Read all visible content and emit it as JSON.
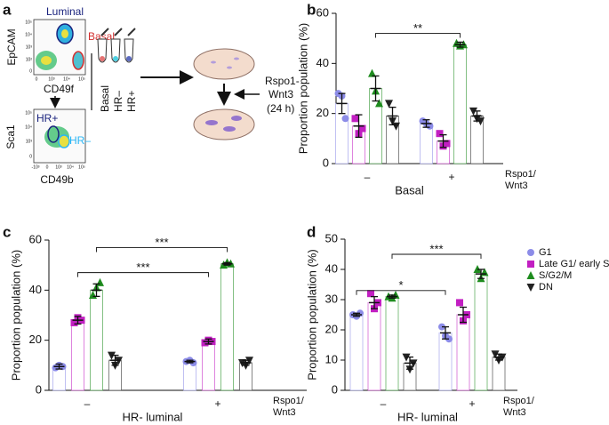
{
  "diagram": {
    "panel": "a",
    "flow1": {
      "gates": [
        "Luminal",
        "Basal"
      ],
      "ylabel": "EpCAM",
      "xlabel": "CD49f",
      "yticks": [
        "10⁵",
        "10⁴",
        "10³",
        "10²",
        "0"
      ],
      "xticks": [
        "0",
        "10³",
        "10⁴",
        "10⁵"
      ]
    },
    "tubes": [
      "Basal",
      "HR–",
      "HR+"
    ],
    "treatment": [
      "Rspo1-",
      "Wnt3",
      "(24 h)"
    ],
    "flow2": {
      "gates": [
        "HR+",
        "HR–"
      ],
      "ylabel": "Sca1",
      "xlabel": "CD49b",
      "yticks": [
        "10⁵",
        "10⁴",
        "10³",
        "0"
      ],
      "xticks": [
        "-10³",
        "0",
        "10³",
        "10⁴",
        "10⁵"
      ]
    }
  },
  "chart_data": [
    {
      "panel": "b",
      "type": "bar",
      "ylabel": "Proportion population (%)",
      "xlabel": "Basal",
      "categories": [
        "–",
        "+"
      ],
      "annotation": [
        "Rspo1/",
        "Wnt3"
      ],
      "ylim": [
        0,
        60
      ],
      "yticks": [
        0,
        20,
        40,
        60
      ],
      "legend": false,
      "series": [
        {
          "color": "#8c8ce8",
          "marker": "circle",
          "values": [
            24,
            16
          ],
          "errors": [
            4,
            1.5
          ],
          "points": [
            [
              28,
              27,
              18
            ],
            [
              17,
              16,
              15
            ]
          ]
        },
        {
          "color": "#c21fc2",
          "marker": "square",
          "values": [
            15,
            9
          ],
          "errors": [
            4.5,
            2.5
          ],
          "points": [
            [
              18,
              12,
              14
            ],
            [
              12,
              7,
              8
            ]
          ]
        },
        {
          "color": "#1e8c1e",
          "marker": "triangle",
          "values": [
            30,
            47.5
          ],
          "errors": [
            5,
            1
          ],
          "points": [
            [
              36,
              29,
              24
            ],
            [
              48,
              47,
              47.5
            ]
          ]
        },
        {
          "color": "#222222",
          "marker": "down-triangle",
          "values": [
            19,
            19
          ],
          "errors": [
            3.5,
            2
          ],
          "points": [
            [
              24,
              17,
              15
            ],
            [
              21,
              18,
              17
            ]
          ]
        }
      ],
      "significance": [
        {
          "label": "**",
          "series": 2,
          "y": 52
        }
      ]
    },
    {
      "panel": "c",
      "type": "bar",
      "ylabel": "Proportion population (%)",
      "xlabel": "HR- luminal",
      "categories": [
        "–",
        "+"
      ],
      "annotation": [
        "Rspo1/",
        "Wnt3"
      ],
      "ylim": [
        0,
        60
      ],
      "yticks": [
        0,
        20,
        40,
        60
      ],
      "legend": false,
      "series": [
        {
          "color": "#8c8ce8",
          "marker": "circle",
          "values": [
            9.5,
            11.5
          ],
          "errors": [
            1,
            0.5
          ],
          "points": [
            [
              9,
              10,
              9.5
            ],
            [
              11.5,
              12,
              11
            ]
          ]
        },
        {
          "color": "#c21fc2",
          "marker": "square",
          "values": [
            28,
            19.5
          ],
          "errors": [
            1.5,
            1
          ],
          "points": [
            [
              27,
              29,
              28
            ],
            [
              19,
              20,
              19.5
            ]
          ]
        },
        {
          "color": "#1e8c1e",
          "marker": "triangle",
          "values": [
            40,
            50.5
          ],
          "errors": [
            2.5,
            0.5
          ],
          "points": [
            [
              38,
              41,
              43
            ],
            [
              50,
              51,
              50.5
            ]
          ]
        },
        {
          "color": "#222222",
          "marker": "down-triangle",
          "values": [
            12,
            11
          ],
          "errors": [
            2,
            1
          ],
          "points": [
            [
              14,
              10,
              12
            ],
            [
              11,
              10,
              12
            ]
          ]
        }
      ],
      "significance": [
        {
          "label": "***",
          "series": 2,
          "y": 57
        },
        {
          "label": "***",
          "series": 1,
          "y": 47
        }
      ]
    },
    {
      "panel": "d",
      "type": "bar",
      "ylabel": "Proportion population (%)",
      "xlabel": "HR- luminal",
      "categories": [
        "–",
        "+"
      ],
      "annotation": [
        "Rspo1/",
        "Wnt3"
      ],
      "ylim": [
        0,
        50
      ],
      "yticks": [
        0,
        10,
        20,
        30,
        40,
        50
      ],
      "legend": "right",
      "series": [
        {
          "name": "G1",
          "color": "#8c8ce8",
          "marker": "circle",
          "values": [
            25,
            19
          ],
          "errors": [
            0.5,
            2
          ],
          "points": [
            [
              25,
              24.5,
              25.5
            ],
            [
              21,
              18,
              17
            ]
          ]
        },
        {
          "name": "Late G1/ early S",
          "color": "#c21fc2",
          "marker": "square",
          "values": [
            29,
            25
          ],
          "errors": [
            2,
            2.5
          ],
          "points": [
            [
              32,
              27,
              29
            ],
            [
              29,
              23,
              25
            ]
          ]
        },
        {
          "name": "S/G2/M",
          "color": "#1e8c1e",
          "marker": "triangle",
          "values": [
            31,
            38.5
          ],
          "errors": [
            0.5,
            1.5
          ],
          "points": [
            [
              31,
              30.5,
              31.5
            ],
            [
              40,
              37,
              39
            ]
          ]
        },
        {
          "name": "DN",
          "color": "#222222",
          "marker": "down-triangle",
          "values": [
            9,
            11
          ],
          "errors": [
            2,
            1
          ],
          "points": [
            [
              11,
              7,
              9
            ],
            [
              12,
              10,
              11
            ]
          ]
        }
      ],
      "significance": [
        {
          "label": "*",
          "series": 0,
          "y": 33
        },
        {
          "label": "***",
          "series": 2,
          "y": 45
        }
      ]
    }
  ]
}
